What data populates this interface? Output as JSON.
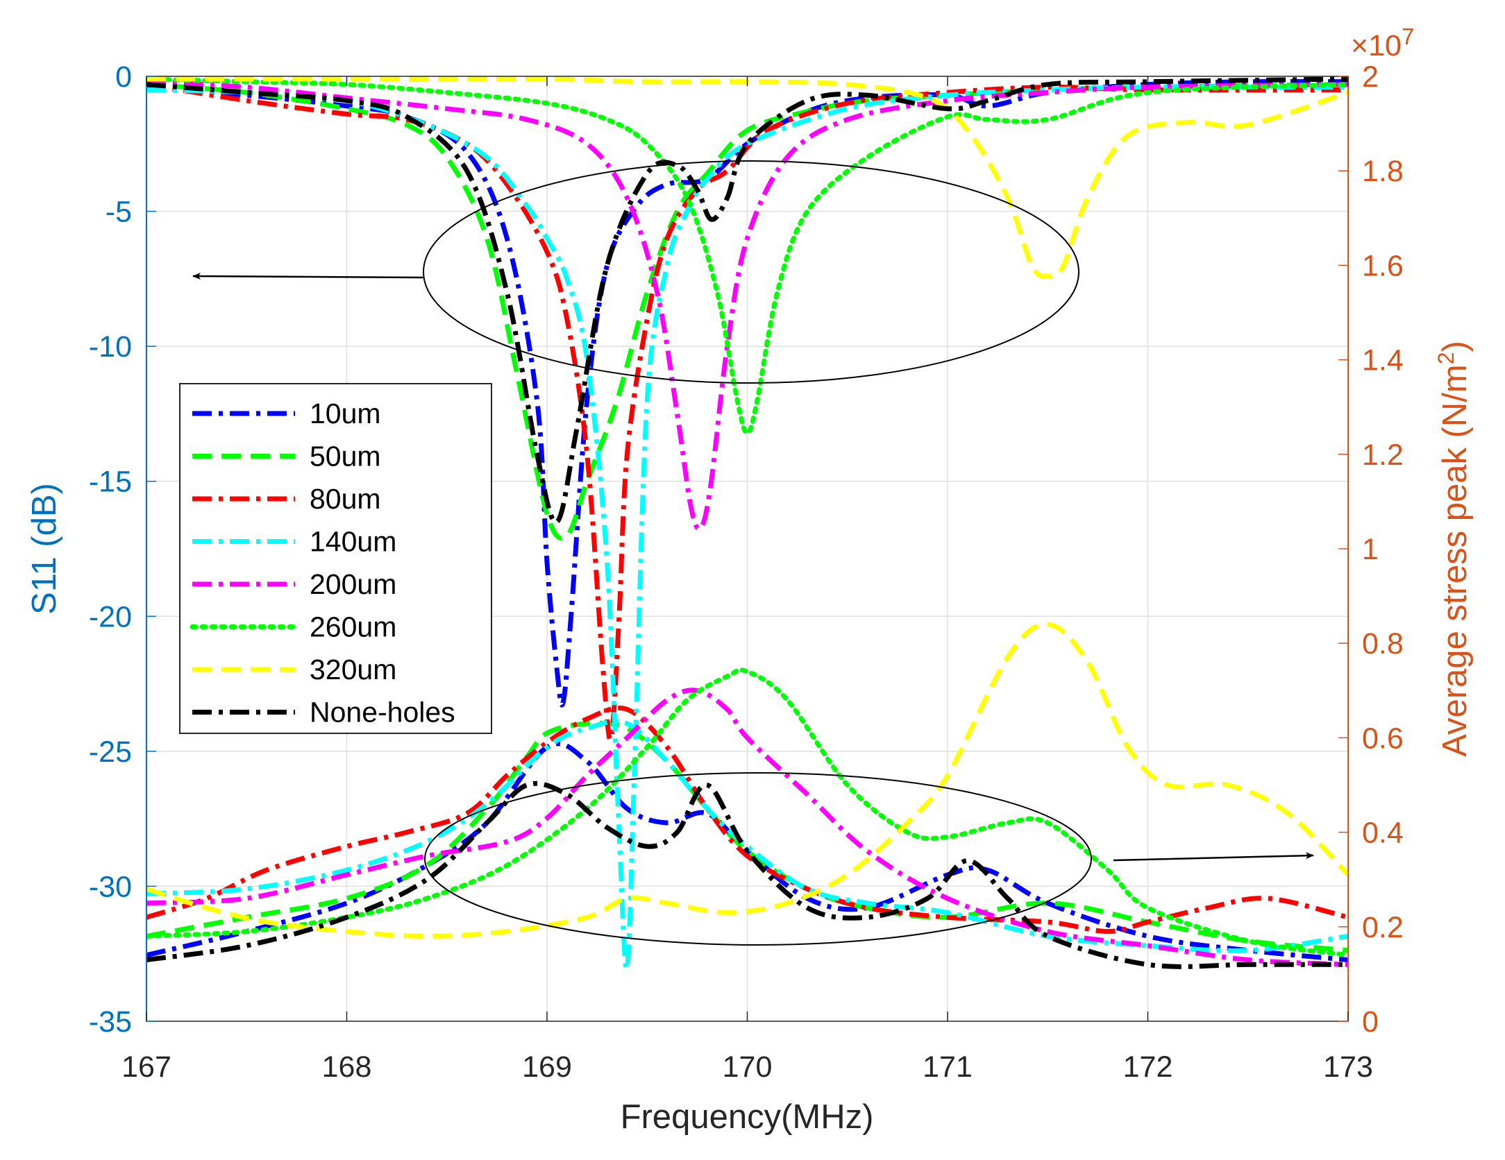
{
  "chart_data": {
    "type": "line",
    "x_label": "Frequency(MHz)",
    "left_ylabel": "S11 (dB)",
    "right_ylabel_main": "Average stress peak (N/m",
    "right_ylabel_sup": "2",
    "right_ylabel_end": ")",
    "right_exponent_base": "×10",
    "right_exponent_power": "7",
    "xlim": [
      167,
      173
    ],
    "left_ylim": [
      -35,
      0
    ],
    "right_ylim": [
      0,
      20000000
    ],
    "x_ticks": [
      "167",
      "168",
      "169",
      "170",
      "171",
      "172",
      "173"
    ],
    "left_y_ticks": [
      "0",
      "-5",
      "-10",
      "-15",
      "-20",
      "-25",
      "-30",
      "-35"
    ],
    "right_y_ticks": [
      "0",
      "0.2",
      "0.4",
      "0.6",
      "0.8",
      "1",
      "1.2",
      "1.4",
      "1.6",
      "1.8",
      "2"
    ],
    "grid": true,
    "legend_position": "middle-left",
    "colors": {
      "left_axis": "#0072BD",
      "right_axis": "#D95319"
    },
    "series": [
      {
        "name": "10um",
        "color": "#0000FF",
        "dash": "dash-dot",
        "s11": {
          "x": [
            167,
            167.5,
            168,
            168.3,
            168.6,
            168.8,
            168.95,
            169.0,
            169.05,
            169.08,
            169.12,
            169.2,
            169.3,
            169.45,
            169.6,
            169.8,
            170.0,
            170.3,
            170.6,
            171.0,
            171.2,
            171.5,
            172,
            172.5,
            173
          ],
          "y": [
            -0.4,
            -0.7,
            -1.1,
            -1.5,
            -2.8,
            -6,
            -12,
            -18,
            -22,
            -23.2,
            -20,
            -12,
            -7,
            -4.8,
            -4.0,
            -3.8,
            -2.5,
            -1.3,
            -0.8,
            -0.7,
            -1.1,
            -0.6,
            -0.3,
            -0.2,
            -0.2
          ]
        },
        "stress": {
          "x": [
            167,
            167.5,
            168,
            168.4,
            168.7,
            169.0,
            169.2,
            169.4,
            169.6,
            169.8,
            170.0,
            170.3,
            170.6,
            171.0,
            171.2,
            171.5,
            172,
            172.5,
            173
          ],
          "y": [
            0.14,
            0.19,
            0.25,
            0.33,
            0.42,
            0.58,
            0.55,
            0.45,
            0.42,
            0.44,
            0.36,
            0.26,
            0.24,
            0.31,
            0.32,
            0.25,
            0.18,
            0.15,
            0.13
          ]
        }
      },
      {
        "name": "50um",
        "color": "#00FF00",
        "dash": "dash",
        "s11": {
          "x": [
            167,
            167.5,
            168,
            168.3,
            168.5,
            168.7,
            168.85,
            169.0,
            169.1,
            169.2,
            169.35,
            169.5,
            169.65,
            169.8,
            170.0,
            170.3,
            170.6,
            171.0,
            171.5,
            172,
            173
          ],
          "y": [
            -0.3,
            -0.6,
            -1.2,
            -1.8,
            -3.0,
            -6.0,
            -11.0,
            -16.2,
            -17.0,
            -15.0,
            -12.0,
            -8.0,
            -5.0,
            -3.6,
            -2.0,
            -1.3,
            -0.9,
            -0.7,
            -0.5,
            -0.4,
            -0.3
          ]
        },
        "stress": {
          "x": [
            167,
            167.5,
            168,
            168.4,
            168.7,
            168.9,
            169.0,
            169.2,
            169.4,
            169.6,
            169.8,
            170.0,
            170.3,
            170.6,
            171.0,
            171.5,
            172,
            172.5,
            173
          ],
          "y": [
            0.18,
            0.22,
            0.26,
            0.33,
            0.45,
            0.56,
            0.61,
            0.63,
            0.62,
            0.55,
            0.45,
            0.36,
            0.28,
            0.24,
            0.22,
            0.25,
            0.21,
            0.17,
            0.15
          ]
        }
      },
      {
        "name": "80um",
        "color": "#FF0000",
        "dash": "dash-dot",
        "s11": {
          "x": [
            167,
            167.5,
            168,
            168.3,
            168.6,
            168.8,
            169.0,
            169.1,
            169.2,
            169.28,
            169.32,
            169.36,
            169.4,
            169.5,
            169.6,
            169.75,
            169.9,
            170.1,
            170.5,
            171,
            171.5,
            172,
            173
          ],
          "y": [
            -0.3,
            -0.9,
            -1.4,
            -1.6,
            -2.5,
            -4.0,
            -6.5,
            -9.0,
            -14.0,
            -22.0,
            -24.5,
            -20.0,
            -14.0,
            -9.0,
            -6.0,
            -4.2,
            -3.5,
            -2.0,
            -1.0,
            -0.6,
            -0.4,
            -0.5,
            -0.5
          ]
        },
        "stress": {
          "x": [
            167,
            167.3,
            167.6,
            168,
            168.3,
            168.6,
            168.8,
            169.0,
            169.2,
            169.4,
            169.6,
            169.8,
            170.0,
            170.3,
            170.6,
            171.0,
            171.5,
            171.8,
            172,
            172.3,
            172.6,
            173
          ],
          "y": [
            0.22,
            0.26,
            0.32,
            0.37,
            0.4,
            0.44,
            0.52,
            0.59,
            0.64,
            0.66,
            0.58,
            0.45,
            0.35,
            0.28,
            0.24,
            0.22,
            0.21,
            0.19,
            0.21,
            0.24,
            0.26,
            0.22
          ]
        }
      },
      {
        "name": "140um",
        "color": "#00FFFF",
        "dash": "dash-dot",
        "s11": {
          "x": [
            167,
            167.5,
            168,
            168.4,
            168.7,
            168.9,
            169.0,
            169.1,
            169.2,
            169.3,
            169.36,
            169.4,
            169.44,
            169.5,
            169.6,
            169.7,
            169.8,
            170.0,
            170.5,
            171,
            171.5,
            172,
            173
          ],
          "y": [
            -0.5,
            -0.6,
            -0.9,
            -1.8,
            -3.0,
            -4.8,
            -6.0,
            -7.5,
            -10.5,
            -18,
            -28,
            -33,
            -25,
            -12,
            -7,
            -5,
            -3.8,
            -2.5,
            -1.2,
            -0.7,
            -0.5,
            -0.4,
            -0.4
          ]
        },
        "stress": {
          "x": [
            167,
            167.5,
            168,
            168.4,
            168.7,
            169.0,
            169.2,
            169.4,
            169.6,
            169.8,
            170.0,
            170.3,
            170.6,
            171.0,
            171.5,
            172,
            172.5,
            173
          ],
          "y": [
            0.27,
            0.28,
            0.32,
            0.38,
            0.46,
            0.58,
            0.62,
            0.63,
            0.55,
            0.45,
            0.37,
            0.28,
            0.25,
            0.23,
            0.18,
            0.16,
            0.15,
            0.18
          ]
        }
      },
      {
        "name": "200um",
        "color": "#FF00FF",
        "dash": "dash-dot",
        "s11": {
          "x": [
            167,
            167.5,
            168,
            168.5,
            168.9,
            169.2,
            169.4,
            169.55,
            169.65,
            169.72,
            169.77,
            169.82,
            169.9,
            170.0,
            170.2,
            170.5,
            171,
            171.5,
            172,
            173
          ],
          "y": [
            -0.2,
            -0.4,
            -0.8,
            -1.2,
            -1.6,
            -2.5,
            -4.5,
            -8,
            -12.5,
            -16,
            -16.7,
            -15,
            -10,
            -6,
            -3.0,
            -1.6,
            -0.9,
            -0.6,
            -0.4,
            -0.3
          ]
        },
        "stress": {
          "x": [
            167,
            167.5,
            168,
            168.4,
            168.8,
            169.0,
            169.2,
            169.4,
            169.6,
            169.75,
            169.9,
            170.0,
            170.3,
            170.6,
            171.0,
            171.5,
            172,
            172.5,
            173
          ],
          "y": [
            0.25,
            0.26,
            0.31,
            0.35,
            0.38,
            0.43,
            0.52,
            0.6,
            0.68,
            0.7,
            0.66,
            0.6,
            0.48,
            0.36,
            0.26,
            0.19,
            0.16,
            0.13,
            0.12
          ]
        }
      },
      {
        "name": "260um",
        "color": "#00FF00",
        "dash": "dot",
        "s11": {
          "x": [
            167,
            167.5,
            168,
            168.5,
            169.0,
            169.3,
            169.5,
            169.7,
            169.85,
            169.95,
            170.0,
            170.05,
            170.15,
            170.3,
            170.6,
            171,
            171.2,
            171.5,
            172,
            173
          ],
          "y": [
            -0.1,
            -0.2,
            -0.3,
            -0.6,
            -1.0,
            -1.6,
            -2.5,
            -4.5,
            -8,
            -12,
            -13.2,
            -12,
            -8,
            -5,
            -3,
            -1.5,
            -1.6,
            -1.6,
            -0.6,
            -0.3
          ]
        },
        "stress": {
          "x": [
            167,
            167.5,
            168,
            168.4,
            168.8,
            169.2,
            169.5,
            169.7,
            169.9,
            170.0,
            170.2,
            170.5,
            170.8,
            171.0,
            171.3,
            171.5,
            171.8,
            172,
            172.5,
            173
          ],
          "y": [
            0.18,
            0.19,
            0.22,
            0.26,
            0.33,
            0.45,
            0.58,
            0.68,
            0.73,
            0.74,
            0.68,
            0.5,
            0.4,
            0.39,
            0.42,
            0.42,
            0.32,
            0.24,
            0.17,
            0.14
          ]
        }
      },
      {
        "name": "320um",
        "color": "#FFFF00",
        "dash": "dash",
        "s11": {
          "x": [
            167,
            167.5,
            168,
            168.5,
            169,
            169.5,
            170,
            170.5,
            170.9,
            171.1,
            171.3,
            171.42,
            171.5,
            171.58,
            171.7,
            171.9,
            172.2,
            172.5,
            173
          ],
          "y": [
            -0.1,
            -0.1,
            -0.1,
            -0.1,
            -0.1,
            -0.2,
            -0.2,
            -0.3,
            -0.8,
            -2.0,
            -4.5,
            -7.0,
            -7.4,
            -7.0,
            -4.5,
            -2.2,
            -1.7,
            -1.8,
            -0.6
          ]
        },
        "stress": {
          "x": [
            167,
            167.3,
            167.6,
            168,
            168.4,
            168.8,
            169.2,
            169.4,
            169.6,
            169.9,
            170.2,
            170.5,
            170.8,
            171.0,
            171.3,
            171.5,
            171.7,
            171.9,
            172.1,
            172.4,
            172.7,
            173
          ],
          "y": [
            0.28,
            0.24,
            0.21,
            0.19,
            0.18,
            0.19,
            0.22,
            0.26,
            0.25,
            0.23,
            0.25,
            0.31,
            0.42,
            0.52,
            0.77,
            0.84,
            0.76,
            0.58,
            0.5,
            0.5,
            0.44,
            0.31
          ]
        }
      },
      {
        "name": "None-holes",
        "color": "#000000",
        "dash": "dash-dot",
        "s11": {
          "x": [
            167,
            167.5,
            168,
            168.3,
            168.6,
            168.8,
            168.95,
            169.05,
            169.15,
            169.3,
            169.5,
            169.65,
            169.75,
            169.82,
            169.9,
            170.0,
            170.3,
            170.6,
            171.0,
            171.2,
            171.5,
            172,
            173
          ],
          "y": [
            -0.3,
            -0.6,
            -0.9,
            -1.5,
            -3.5,
            -8,
            -14,
            -16.5,
            -13,
            -7,
            -3.6,
            -3.3,
            -4.2,
            -5.3,
            -4.5,
            -2.5,
            -0.9,
            -0.7,
            -1.2,
            -0.9,
            -0.3,
            -0.2,
            -0.1
          ]
        },
        "stress": {
          "x": [
            167,
            167.5,
            168,
            168.4,
            168.7,
            168.9,
            169.1,
            169.3,
            169.5,
            169.65,
            169.8,
            170.0,
            170.3,
            170.6,
            170.9,
            171.1,
            171.3,
            171.5,
            172,
            172.5,
            173
          ],
          "y": [
            0.13,
            0.16,
            0.22,
            0.3,
            0.42,
            0.5,
            0.48,
            0.41,
            0.37,
            0.4,
            0.5,
            0.36,
            0.24,
            0.22,
            0.26,
            0.34,
            0.26,
            0.18,
            0.12,
            0.12,
            0.12
          ]
        }
      }
    ],
    "annotations": [
      {
        "type": "ellipse",
        "target": "S11 curves",
        "arrow_direction": "left-axis"
      },
      {
        "type": "ellipse",
        "target": "stress curves",
        "arrow_direction": "right-axis"
      }
    ]
  }
}
